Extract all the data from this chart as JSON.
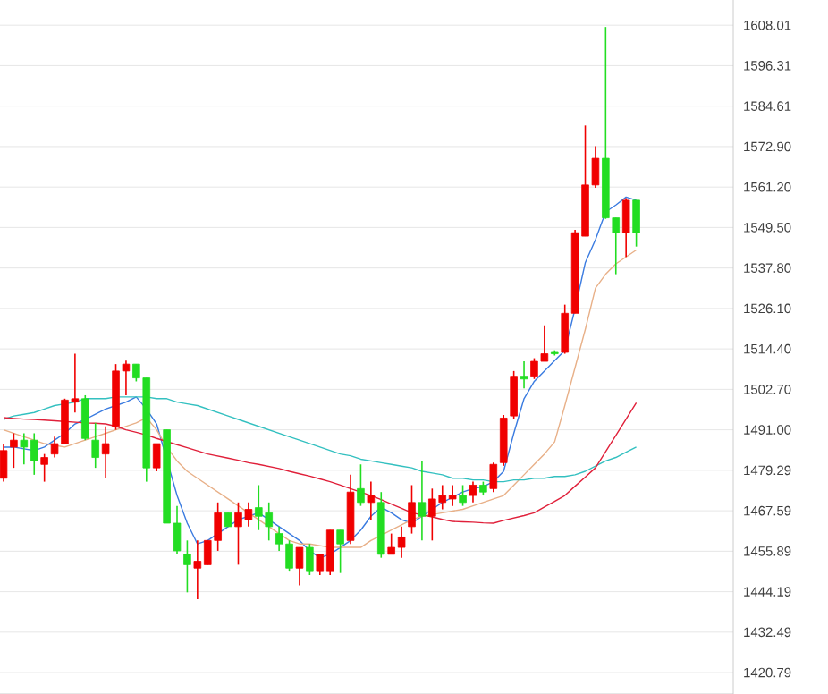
{
  "chart_data": {
    "type": "candlestick",
    "categories": [
      null,
      null,
      null,
      null,
      null,
      null,
      null,
      null,
      null,
      null,
      null,
      null,
      null,
      null,
      null,
      null,
      null,
      null,
      null,
      null,
      null,
      null,
      null,
      null,
      null,
      null,
      null,
      null,
      null,
      null,
      null,
      null,
      null,
      null,
      null,
      null,
      null,
      null,
      null,
      null,
      null,
      null,
      null,
      null,
      null,
      null,
      null,
      null,
      null,
      null,
      null,
      null,
      null,
      null,
      null,
      null,
      null,
      null,
      null,
      null,
      null,
      null,
      null
    ],
    "ohlc": [
      [
        1477,
        1487,
        1476,
        1485
      ],
      [
        1486,
        1490,
        1480,
        1488
      ],
      [
        1488,
        1490,
        1481,
        1486
      ],
      [
        1488,
        1490,
        1478,
        1482
      ],
      [
        1481,
        1484,
        1476,
        1483
      ],
      [
        1484,
        1489,
        1483,
        1487
      ],
      [
        1487,
        1500,
        1487,
        1499.6
      ],
      [
        1499,
        1513,
        1496,
        1500
      ],
      [
        1500,
        1501,
        1488,
        1488.5
      ],
      [
        1488,
        1493,
        1480,
        1483
      ],
      [
        1484,
        1492,
        1477,
        1487
      ],
      [
        1492,
        1510,
        1491,
        1508
      ],
      [
        1508,
        1511,
        1501,
        1510
      ],
      [
        1510,
        1510,
        1505,
        1506
      ],
      [
        1506,
        1506,
        1476,
        1480
      ],
      [
        1480,
        1487,
        1479,
        1487
      ],
      [
        1491,
        1491,
        1464,
        1464
      ],
      [
        1464,
        1469,
        1455,
        1456
      ],
      [
        1455,
        1459,
        1444,
        1452
      ],
      [
        1451,
        1459,
        1442,
        1453
      ],
      [
        1452,
        1459,
        1452,
        1459
      ],
      [
        1459,
        1470,
        1456,
        1467
      ],
      [
        1467,
        1467,
        1463,
        1463
      ],
      [
        1463,
        1470,
        1452,
        1467
      ],
      [
        1465,
        1470,
        1463,
        1468
      ],
      [
        1468.5,
        1475,
        1462,
        1466
      ],
      [
        1467,
        1470,
        1459,
        1463
      ],
      [
        1461,
        1463,
        1456,
        1458
      ],
      [
        1458,
        1459,
        1450,
        1451
      ],
      [
        1451,
        1457,
        1446,
        1457
      ],
      [
        1457,
        1458,
        1449,
        1450
      ],
      [
        1450,
        1455,
        1449,
        1455
      ],
      [
        1450,
        1462,
        1449,
        1462
      ],
      [
        1462,
        1462,
        1449.6,
        1458
      ],
      [
        1459,
        1478,
        1458,
        1473
      ],
      [
        1474,
        1481,
        1469,
        1470
      ],
      [
        1470,
        1476,
        1465,
        1472
      ],
      [
        1470,
        1473,
        1454,
        1455
      ],
      [
        1455,
        1461,
        1455,
        1457
      ],
      [
        1457,
        1463,
        1454,
        1460
      ],
      [
        1463,
        1475,
        1461,
        1470
      ],
      [
        1470,
        1482,
        1459,
        1466
      ],
      [
        1466,
        1474,
        1459,
        1471
      ],
      [
        1470,
        1475,
        1468,
        1472
      ],
      [
        1471,
        1475,
        1469,
        1472
      ],
      [
        1472,
        1475,
        1469,
        1470
      ],
      [
        1472,
        1476,
        1470,
        1475
      ],
      [
        1475,
        1476,
        1472,
        1473
      ],
      [
        1474,
        1481.5,
        1473,
        1481
      ],
      [
        1481.5,
        1495.3,
        1480.6,
        1494.4
      ],
      [
        1495,
        1508,
        1494,
        1506.5
      ],
      [
        1506.5,
        1510.8,
        1503,
        1505.7
      ],
      [
        1506.5,
        1511.7,
        1505.7,
        1510.8
      ],
      [
        1510.8,
        1521.2,
        1510.8,
        1513
      ],
      [
        1513.4,
        1514,
        1512.5,
        1513
      ],
      [
        1513.4,
        1527.2,
        1513,
        1524.7
      ],
      [
        1524.7,
        1548.8,
        1524.7,
        1548
      ],
      [
        1547,
        1579,
        1547,
        1561.8
      ],
      [
        1561.8,
        1573,
        1561,
        1569.5
      ],
      [
        1569.5,
        1607.5,
        1552,
        1552.3
      ],
      [
        1552.3,
        1552.3,
        1536,
        1548
      ],
      [
        1548,
        1558,
        1541,
        1557.4
      ],
      [
        1557.4,
        1557.4,
        1544,
        1548
      ]
    ],
    "colors": [
      "#f00000",
      "#f00000",
      "#22dd22",
      "#22dd22",
      "#f00000",
      "#f00000",
      "#f00000",
      "#f00000",
      "#22dd22",
      "#22dd22",
      "#f00000",
      "#f00000",
      "#f00000",
      "#22dd22",
      "#22dd22",
      "#f00000",
      "#22dd22",
      "#22dd22",
      "#22dd22",
      "#f00000",
      "#f00000",
      "#f00000",
      "#22dd22",
      "#f00000",
      "#f00000",
      "#22dd22",
      "#22dd22",
      "#22dd22",
      "#22dd22",
      "#f00000",
      "#22dd22",
      "#f00000",
      "#f00000",
      "#22dd22",
      "#f00000",
      "#22dd22",
      "#f00000",
      "#22dd22",
      "#f00000",
      "#f00000",
      "#f00000",
      "#22dd22",
      "#f00000",
      "#f00000",
      "#f00000",
      "#22dd22",
      "#f00000",
      "#22dd22",
      "#f00000",
      "#f00000",
      "#f00000",
      "#22dd22",
      "#f00000",
      "#f00000",
      "#22dd22",
      "#f00000",
      "#f00000",
      "#f00000",
      "#f00000",
      "#22dd22",
      "#22dd22",
      "#f00000",
      "#22dd22"
    ],
    "series": [
      {
        "type": "line",
        "color": "#3a7be0",
        "values": [
          1486,
          1486,
          1485.5,
          1485,
          1486,
          1488,
          1490,
          1492.7,
          1494,
          1495.5,
          1497,
          1498,
          1499,
          1500.5,
          1497,
          1492.7,
          null,
          1472,
          1464,
          1458,
          1459,
          1461,
          1463,
          1465,
          1466,
          1467,
          1465,
          1463,
          1461,
          1459,
          1456,
          1454,
          1455,
          1457,
          1459,
          1462,
          1466,
          1468.6,
          1467,
          1465,
          1464,
          1466,
          1468,
          1470,
          1471.5,
          1473,
          1474,
          1474.6,
          1476,
          1479,
          1490,
          1500,
          1505,
          1508,
          1511,
          1514,
          1526,
          1539.3,
          1546,
          1554,
          1556,
          1558.3,
          1557.4
        ]
      },
      {
        "type": "line",
        "color": "#e8b088",
        "values": [
          1491,
          1490,
          1489,
          1488,
          1487,
          1486.5,
          1486,
          1487,
          1488,
          1489,
          1490,
          1491,
          1492,
          1493,
          1494.5,
          1491,
          1486,
          1482,
          1479,
          1477,
          1475,
          1473,
          1471,
          1469,
          1467,
          1465,
          1463,
          1461,
          1459,
          1458,
          1458,
          1457.5,
          1457,
          1457,
          1457,
          1457,
          1459,
          1460.5,
          1462,
          1463.5,
          1465,
          1466,
          1466.5,
          1467,
          1467.5,
          1468,
          1469,
          1470,
          1471,
          1472,
          1475,
          1478,
          1481,
          1484,
          1487.5,
          1498,
          1509,
          1520,
          1532,
          1536,
          1539,
          1541,
          1543
        ]
      },
      {
        "type": "line",
        "color": "#33c0c0",
        "values": [
          1494,
          1495,
          1495.5,
          1496,
          1497,
          1498,
          1498.5,
          1499,
          1500,
          1500,
          1500,
          1500.5,
          1500.5,
          1500.5,
          1500.5,
          1500,
          1500,
          1499,
          1498.5,
          1498,
          1497,
          1496,
          1495,
          1494,
          1493,
          1492,
          1491,
          1490,
          1489,
          1488,
          1487,
          1486,
          1485,
          1484,
          1483.5,
          1482.5,
          1482,
          1481.5,
          1481,
          1480.5,
          1480,
          1479,
          1478.5,
          1478,
          1477,
          1477,
          1476.5,
          1476.5,
          1476,
          1476,
          1476.5,
          1476.5,
          1477,
          1477,
          1477.5,
          1477.5,
          1478,
          1479,
          1480.5,
          1482,
          1483,
          1484.5,
          1486
        ]
      },
      {
        "type": "line",
        "color": "#e0203a",
        "values": [
          1494.5,
          1494.3,
          1494.1,
          1494,
          1493.8,
          1493.6,
          1493.4,
          1493.2,
          1493,
          1492.9,
          1492.7,
          1492,
          1491,
          1490.3,
          1489.5,
          1488.5,
          1487.6,
          1486.7,
          1485.8,
          1484.9,
          1484,
          1483.4,
          1482.8,
          1482.2,
          1481.5,
          1481,
          1480.4,
          1479.8,
          1479,
          1478.3,
          1477.6,
          1476.8,
          1476,
          1475,
          1474,
          1473,
          1472,
          1470.8,
          1469.5,
          1468.3,
          1467,
          1466.4,
          1465.8,
          1465.1,
          1464.5,
          1464.4,
          1464.3,
          1464.1,
          1464,
          1464.8,
          1465.5,
          1466.2,
          1467,
          1468.7,
          1470.3,
          1472,
          1474.7,
          1477.3,
          1480,
          1484.7,
          1489.4,
          1494.1,
          1498.8
        ]
      }
    ],
    "ylim": [
      1414.6,
      1615.3
    ],
    "yticks": [
      1420.79,
      1432.49,
      1444.19,
      1455.89,
      1467.59,
      1479.29,
      {
        "value": 1491.0,
        "label": "1491.00"
      },
      {
        "value": 1502.7,
        "label": "1502.70"
      },
      {
        "value": 1514.4,
        "label": "1514.40"
      },
      {
        "value": 1526.1,
        "label": "1526.10"
      },
      {
        "value": 1537.8,
        "label": "1537.80"
      },
      {
        "value": 1549.5,
        "label": "1549.50"
      },
      {
        "value": 1561.2,
        "label": "1561.20"
      },
      {
        "value": 1572.9,
        "label": "1572.90"
      },
      1584.61,
      1596.31,
      1608.01
    ],
    "grid": "y",
    "tick_labels": "y"
  }
}
